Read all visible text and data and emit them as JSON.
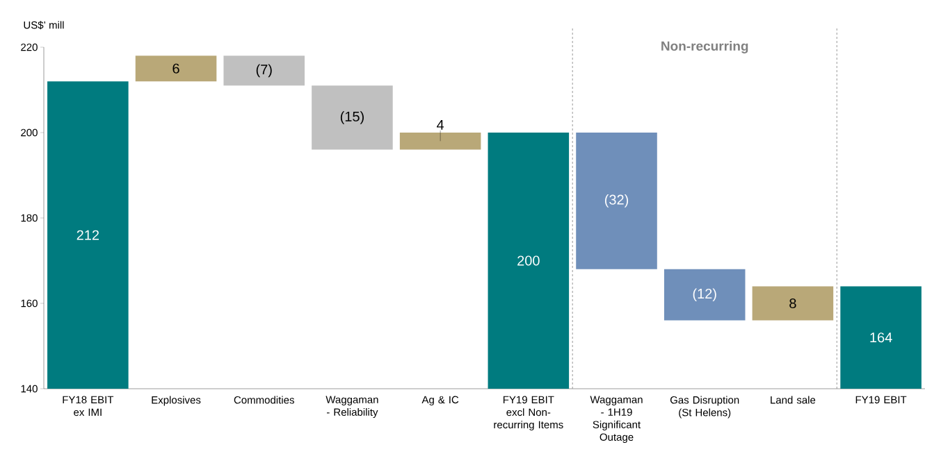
{
  "chart_data": {
    "type": "bar",
    "ylabel": "US$’ mill",
    "categories": [
      "FY18 EBIT ex IMI",
      "Explosives",
      "Commodities",
      "Waggaman - Reliability",
      "Ag & IC",
      "FY19 EBIT excl Non-recurring Items",
      "Waggaman - 1H19 Significant Outage",
      "Gas Disruption (St Helens)",
      "Land sale",
      "FY19 EBIT"
    ],
    "values": [
      212,
      6,
      -7,
      -15,
      4,
      200,
      -32,
      -12,
      8,
      164
    ],
    "base": [
      null,
      212,
      218,
      211,
      196,
      null,
      200,
      168,
      156,
      null
    ],
    "colors": [
      "#007b7f",
      "#b9a878",
      "#c0c0c0",
      "#c0c0c0",
      "#b9a878",
      "#007b7f",
      "#6f8fba",
      "#6f8fba",
      "#b9a878",
      "#007b7f"
    ],
    "value_labels": [
      "212",
      "6",
      "(7)",
      "(15)",
      "4",
      "200",
      "(32)",
      "(12)",
      "8",
      "164"
    ],
    "ylim": [
      140,
      220
    ],
    "yticks": [
      140,
      160,
      180,
      200,
      220
    ],
    "annotations": [
      "Non-recurring"
    ]
  }
}
